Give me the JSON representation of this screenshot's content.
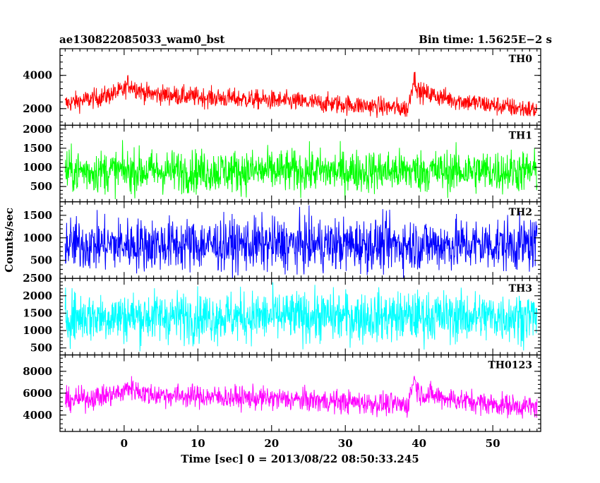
{
  "chart_data": {
    "type": "line",
    "title_left": "ae130822085033_wam0_bst",
    "title_right": "Bin time: 1.5625E−2 s",
    "xlabel": "Time [sec] 0 = 2013/08/22 08:50:33.245",
    "ylabel": "Counts/sec",
    "xlim": [
      -8.7,
      56.5
    ],
    "x_ticks": [
      0,
      10,
      20,
      30,
      40,
      50
    ],
    "x_range_data": [
      -8,
      56
    ],
    "panels": [
      {
        "name": "TH0",
        "color": "#ff0000",
        "ylim": [
          1000,
          5600
        ],
        "y_ticks": [
          2000,
          4000
        ],
        "y_tick_labels": [
          "2000",
          "4000"
        ],
        "approx_profile": {
          "t": [
            -8,
            -3,
            0,
            0.5,
            3,
            10,
            20,
            30,
            38.5,
            39.3,
            40,
            45,
            50,
            56
          ],
          "mean": [
            2300,
            2700,
            3100,
            3500,
            2900,
            2700,
            2500,
            2250,
            2000,
            3900,
            3000,
            2500,
            2200,
            1900
          ],
          "noise": 420
        }
      },
      {
        "name": "TH1",
        "color": "#00ff00",
        "ylim": [
          100,
          2100
        ],
        "y_ticks": [
          500,
          1000,
          1500,
          2000
        ],
        "y_tick_labels": [
          "500",
          "1000",
          "1500",
          "2000"
        ],
        "approx_profile": {
          "t": [
            -8,
            56
          ],
          "mean": [
            900,
            900
          ],
          "noise": 400
        }
      },
      {
        "name": "TH2",
        "color": "#0000ff",
        "ylim": [
          100,
          1800
        ],
        "y_ticks": [
          500,
          1000,
          1500
        ],
        "y_tick_labels": [
          "500",
          "1000",
          "1500"
        ],
        "approx_profile": {
          "t": [
            -8,
            56
          ],
          "mean": [
            850,
            850
          ],
          "noise": 420
        }
      },
      {
        "name": "TH3",
        "color": "#00ffff",
        "ylim": [
          300,
          2500
        ],
        "y_ticks": [
          500,
          1000,
          1500,
          2000,
          2500
        ],
        "y_tick_labels": [
          "500",
          "1000",
          "1500",
          "2000",
          "2500"
        ],
        "approx_profile": {
          "t": [
            -8,
            56
          ],
          "mean": [
            1400,
            1400
          ],
          "noise": 520
        }
      },
      {
        "name": "TH0123",
        "color": "#ff00ff",
        "ylim": [
          2500,
          9500
        ],
        "y_ticks": [
          4000,
          6000,
          8000
        ],
        "y_tick_labels": [
          "4000",
          "6000",
          "8000"
        ],
        "approx_profile": {
          "t": [
            -8,
            -3,
            0,
            0.5,
            3,
            10,
            20,
            30,
            38.5,
            39.3,
            40,
            45,
            50,
            56
          ],
          "mean": [
            5300,
            5700,
            6100,
            6600,
            5900,
            5700,
            5500,
            5200,
            4900,
            7400,
            6000,
            5400,
            5000,
            4700
          ],
          "noise": 750
        }
      }
    ]
  }
}
